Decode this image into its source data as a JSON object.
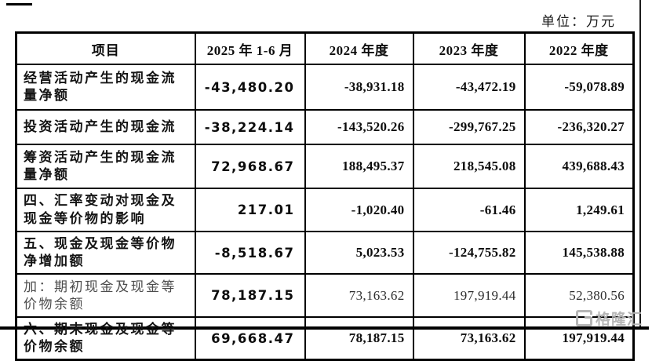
{
  "page": {
    "unit_label": "单位：万元",
    "watermark_text": "格隆汇"
  },
  "table": {
    "columns": [
      "项目",
      "2025 年 1-6 月",
      "2024 年度",
      "2023 年度",
      "2022 年度"
    ],
    "rows": [
      {
        "label": "经营活动产生的现金流量净额",
        "values": [
          "-43,480.20",
          "-38,931.18",
          "-43,472.19",
          "-59,078.89"
        ]
      },
      {
        "label": "投资活动产生的现金流",
        "values": [
          "-38,224.14",
          "-143,520.26",
          "-299,767.25",
          "-236,320.27"
        ]
      },
      {
        "label": "筹资活动产生的现金流量净额",
        "values": [
          "72,968.67",
          "188,495.37",
          "218,545.08",
          "439,688.43"
        ]
      },
      {
        "label": "四、汇率变动对现金及现金等价物的影响",
        "values": [
          "217.01",
          "-1,020.40",
          "-61.46",
          "1,249.61"
        ]
      },
      {
        "label": "五、现金及现金等价物净增加额",
        "values": [
          "-8,518.67",
          "5,023.53",
          "-124,755.82",
          "145,538.88"
        ]
      },
      {
        "label": "加：期初现金及现金等价物余额",
        "values": [
          "78,187.15",
          "73,163.62",
          "197,919.44",
          "52,380.56"
        ]
      },
      {
        "label": "六、期末现金及现金等价物余额",
        "values": [
          "69,668.47",
          "78,187.15",
          "73,163.62",
          "197,919.44"
        ]
      }
    ]
  }
}
